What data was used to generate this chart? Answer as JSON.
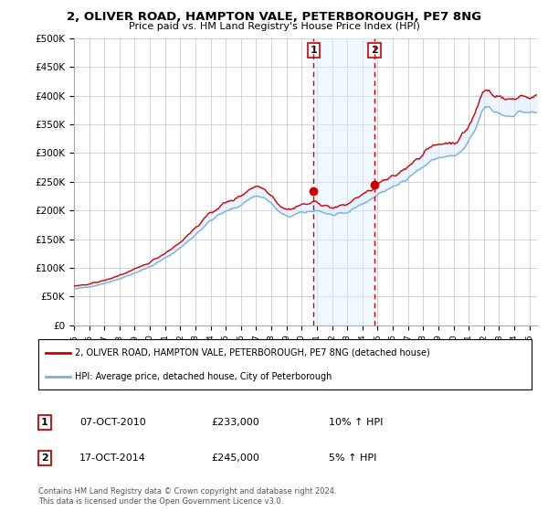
{
  "title": "2, OLIVER ROAD, HAMPTON VALE, PETERBOROUGH, PE7 8NG",
  "subtitle": "Price paid vs. HM Land Registry's House Price Index (HPI)",
  "legend_line1": "2, OLIVER ROAD, HAMPTON VALE, PETERBOROUGH, PE7 8NG (detached house)",
  "legend_line2": "HPI: Average price, detached house, City of Peterborough",
  "transaction1_date": "07-OCT-2010",
  "transaction1_price": "£233,000",
  "transaction1_hpi": "10% ↑ HPI",
  "transaction2_date": "17-OCT-2014",
  "transaction2_price": "£245,000",
  "transaction2_hpi": "5% ↑ HPI",
  "footnote": "Contains HM Land Registry data © Crown copyright and database right 2024.\nThis data is licensed under the Open Government Licence v3.0.",
  "ylim": [
    0,
    500000
  ],
  "yticks": [
    0,
    50000,
    100000,
    150000,
    200000,
    250000,
    300000,
    350000,
    400000,
    450000,
    500000
  ],
  "color_red": "#cc0000",
  "color_blue": "#7ab0d4",
  "color_shading": "#ddeeff",
  "color_column_shade": "#ddeeff",
  "vline_color": "#cc0000",
  "background_color": "#ffffff",
  "grid_color": "#cccccc",
  "transaction1_x": 2010.79,
  "transaction2_x": 2014.79,
  "transaction1_y": 233000,
  "transaction2_y": 245000,
  "xmin": 1995.0,
  "xmax": 2025.5
}
